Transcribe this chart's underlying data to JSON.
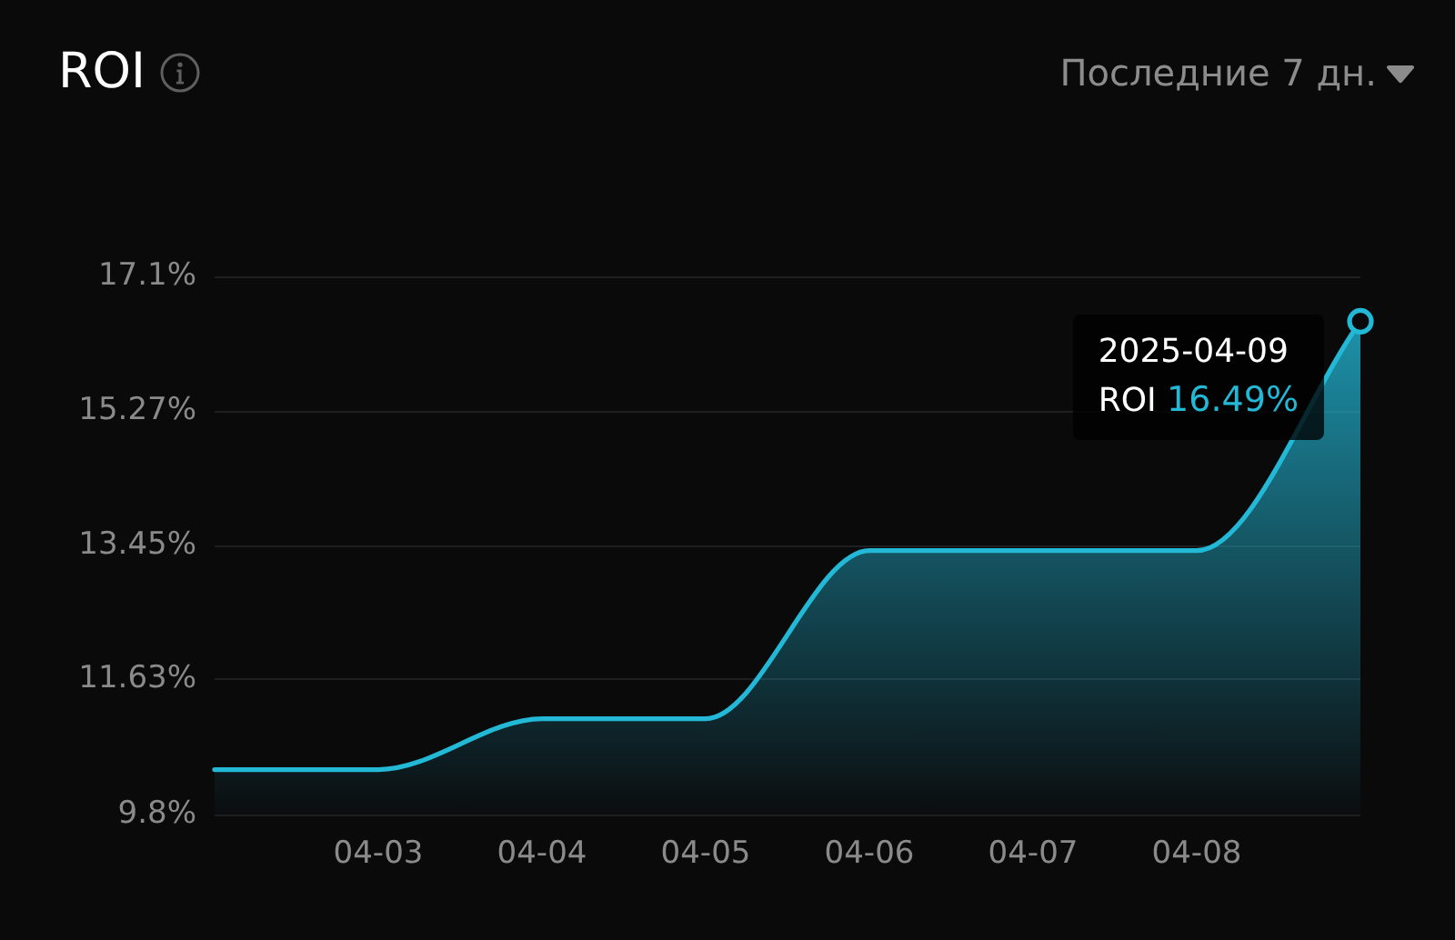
{
  "chart_data": {
    "type": "area",
    "title": "ROI",
    "subtitle": "Последние 7 дн.",
    "annotations": [
      "2025-04-09"
    ],
    "categories": [
      null,
      "04-03",
      "04-04",
      "04-05",
      "04-06",
      "04-07",
      "04-08",
      null
    ],
    "series": [
      {
        "name": "ROI",
        "color": "#22b8d6",
        "values": [
          10.41,
          10.41,
          11.1,
          11.1,
          13.38,
          13.38,
          13.38,
          16.49
        ],
        "value_labels": [
          null,
          null,
          null,
          null,
          null,
          null,
          null,
          "16.49%"
        ]
      }
    ],
    "ylim": [
      9.8,
      17.1
    ],
    "yticks": [
      {
        "value": 9.8,
        "label": "9.8%"
      },
      {
        "value": 11.63,
        "label": "11.63%"
      },
      {
        "value": 13.45,
        "label": "13.45%"
      },
      {
        "value": 15.27,
        "label": "15.27%"
      },
      {
        "value": 17.1,
        "label": "17.1%"
      }
    ],
    "grid": "y"
  }
}
